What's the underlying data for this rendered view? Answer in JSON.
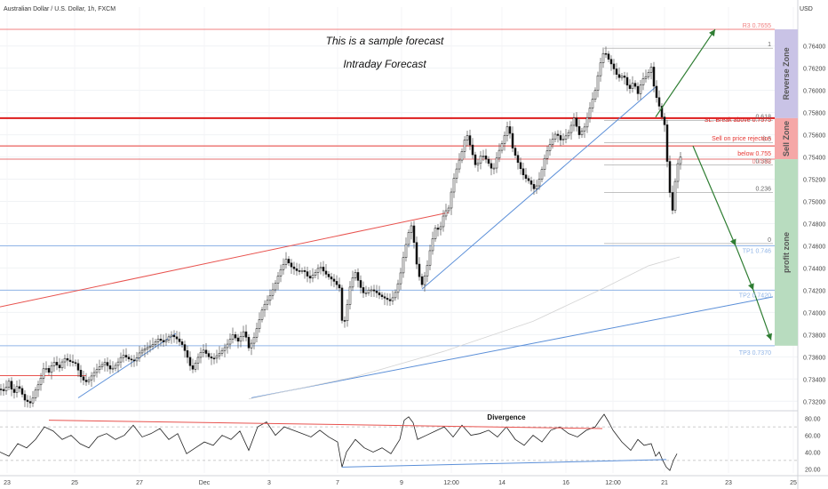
{
  "header": {
    "symbol_title": "Australian Dollar / U.S. Dollar, 1h, FXCM",
    "currency": "USD"
  },
  "annotations": {
    "line1": "This is a sample forecast",
    "line2": "Intraday Forecast"
  },
  "zones": {
    "reverse": "Reverse Zone",
    "sell": "Sell Zone",
    "profit": "profit zone",
    "colors": {
      "reverse": "#c9c3e6",
      "sell": "#f5a7a7",
      "profit": "#b8dcbf"
    }
  },
  "chart_data": {
    "type": "candlestick",
    "ylim": [
      0.7313,
      0.7675
    ],
    "y_ticks": [
      "0.76400",
      "0.76200",
      "0.76000",
      "0.75800",
      "0.75600",
      "0.75400",
      "0.75200",
      "0.75000",
      "0.74800",
      "0.74600",
      "0.74400",
      "0.74200",
      "0.74000",
      "0.73800",
      "0.73600",
      "0.73400",
      "0.73200"
    ],
    "x_ticks": [
      "23",
      "25",
      "27",
      "Dec",
      "3",
      "7",
      "9",
      "12:00",
      "14",
      "16",
      "12:00",
      "21",
      "23",
      "25"
    ],
    "levels": [
      {
        "price": 0.7655,
        "label": "R3  0.7655",
        "color": "#f08080"
      },
      {
        "price": 0.7575,
        "label": "SL: Break above 0.7575",
        "color": "#dd1d1d"
      },
      {
        "price": 0.755,
        "label": "Sell on price rejection",
        "color": "#e53935"
      },
      {
        "price": 0.755,
        "label": "below  0.755",
        "color": "#e53935"
      },
      {
        "price": 0.7538,
        "label": "0.7538",
        "color": "#e57373"
      },
      {
        "price": 0.746,
        "label": "TP1  0.746",
        "color": "#90b4e6"
      },
      {
        "price": 0.742,
        "label": "TP2  0.7420",
        "color": "#90b4e6"
      },
      {
        "price": 0.737,
        "label": "TP3  0.7370",
        "color": "#90b4e6"
      }
    ],
    "fib_levels": [
      {
        "ratio": "1",
        "price": 0.7638
      },
      {
        "ratio": "0.618",
        "price": 0.7573
      },
      {
        "ratio": "0.5",
        "price": 0.7553
      },
      {
        "ratio": "0.382",
        "price": 0.7533
      },
      {
        "ratio": "0.236",
        "price": 0.7508
      },
      {
        "ratio": "0",
        "price": 0.7462
      }
    ],
    "price_path": [
      [
        0,
        0.7331
      ],
      [
        5,
        0.7329
      ],
      [
        10,
        0.7338
      ],
      [
        15,
        0.7326
      ],
      [
        20,
        0.7335
      ],
      [
        28,
        0.7321
      ],
      [
        35,
        0.7318
      ],
      [
        40,
        0.733
      ],
      [
        45,
        0.7338
      ],
      [
        50,
        0.7352
      ],
      [
        55,
        0.7346
      ],
      [
        60,
        0.7356
      ],
      [
        67,
        0.735
      ],
      [
        72,
        0.7359
      ],
      [
        78,
        0.7356
      ],
      [
        85,
        0.7354
      ],
      [
        92,
        0.734
      ],
      [
        98,
        0.7337
      ],
      [
        105,
        0.7345
      ],
      [
        112,
        0.7351
      ],
      [
        118,
        0.7355
      ],
      [
        125,
        0.7348
      ],
      [
        132,
        0.7354
      ],
      [
        138,
        0.7362
      ],
      [
        145,
        0.7358
      ],
      [
        152,
        0.7356
      ],
      [
        158,
        0.7365
      ],
      [
        165,
        0.7368
      ],
      [
        172,
        0.7371
      ],
      [
        178,
        0.7376
      ],
      [
        185,
        0.7373
      ],
      [
        192,
        0.738
      ],
      [
        198,
        0.7377
      ],
      [
        205,
        0.7371
      ],
      [
        210,
        0.7362
      ],
      [
        216,
        0.7347
      ],
      [
        222,
        0.7358
      ],
      [
        228,
        0.7367
      ],
      [
        235,
        0.736
      ],
      [
        240,
        0.7358
      ],
      [
        248,
        0.7364
      ],
      [
        255,
        0.737
      ],
      [
        262,
        0.738
      ],
      [
        268,
        0.7374
      ],
      [
        275,
        0.7384
      ],
      [
        280,
        0.7368
      ],
      [
        285,
        0.7375
      ],
      [
        290,
        0.7388
      ],
      [
        296,
        0.7405
      ],
      [
        302,
        0.7412
      ],
      [
        308,
        0.7422
      ],
      [
        315,
        0.7437
      ],
      [
        322,
        0.7448
      ],
      [
        328,
        0.7441
      ],
      [
        335,
        0.7437
      ],
      [
        342,
        0.7438
      ],
      [
        348,
        0.743
      ],
      [
        355,
        0.7436
      ],
      [
        360,
        0.7442
      ],
      [
        365,
        0.7436
      ],
      [
        370,
        0.7432
      ],
      [
        376,
        0.7428
      ],
      [
        382,
        0.7422
      ],
      [
        386,
        0.7383
      ],
      [
        390,
        0.7402
      ],
      [
        395,
        0.7428
      ],
      [
        400,
        0.7436
      ],
      [
        405,
        0.7424
      ],
      [
        410,
        0.7416
      ],
      [
        416,
        0.7421
      ],
      [
        422,
        0.7419
      ],
      [
        428,
        0.7415
      ],
      [
        435,
        0.7412
      ],
      [
        440,
        0.741
      ],
      [
        445,
        0.7418
      ],
      [
        450,
        0.7431
      ],
      [
        455,
        0.7454
      ],
      [
        460,
        0.7472
      ],
      [
        463,
        0.7478
      ],
      [
        466,
        0.7463
      ],
      [
        470,
        0.7437
      ],
      [
        475,
        0.7425
      ],
      [
        480,
        0.7438
      ],
      [
        485,
        0.746
      ],
      [
        490,
        0.7476
      ],
      [
        495,
        0.7474
      ],
      [
        500,
        0.749
      ],
      [
        505,
        0.7494
      ],
      [
        510,
        0.7518
      ],
      [
        515,
        0.7532
      ],
      [
        520,
        0.7545
      ],
      [
        525,
        0.7562
      ],
      [
        530,
        0.7548
      ],
      [
        536,
        0.753
      ],
      [
        542,
        0.7543
      ],
      [
        548,
        0.7537
      ],
      [
        555,
        0.7527
      ],
      [
        560,
        0.7542
      ],
      [
        566,
        0.7554
      ],
      [
        572,
        0.757
      ],
      [
        577,
        0.7548
      ],
      [
        583,
        0.7535
      ],
      [
        590,
        0.7522
      ],
      [
        596,
        0.7518
      ],
      [
        602,
        0.751
      ],
      [
        608,
        0.7522
      ],
      [
        614,
        0.7542
      ],
      [
        620,
        0.7553
      ],
      [
        626,
        0.7562
      ],
      [
        632,
        0.7554
      ],
      [
        640,
        0.7562
      ],
      [
        646,
        0.7575
      ],
      [
        652,
        0.756
      ],
      [
        658,
        0.7567
      ],
      [
        664,
        0.7584
      ],
      [
        670,
        0.76
      ],
      [
        675,
        0.7622
      ],
      [
        680,
        0.7636
      ],
      [
        685,
        0.7628
      ],
      [
        690,
        0.7621
      ],
      [
        696,
        0.7611
      ],
      [
        702,
        0.7614
      ],
      [
        708,
        0.76
      ],
      [
        713,
        0.7608
      ],
      [
        718,
        0.7597
      ],
      [
        723,
        0.761
      ],
      [
        728,
        0.7613
      ],
      [
        733,
        0.7621
      ],
      [
        737,
        0.7598
      ],
      [
        741,
        0.7589
      ],
      [
        745,
        0.7576
      ],
      [
        748,
        0.7569
      ],
      [
        751,
        0.7536
      ],
      [
        754,
        0.7508
      ],
      [
        757,
        0.7492
      ],
      [
        760,
        0.7518
      ],
      [
        763,
        0.7534
      ],
      [
        766,
        0.754
      ]
    ],
    "trendlines": [
      {
        "name": "red-trendline",
        "p1": [
          0,
          0.7405
        ],
        "p2": [
          505,
          0.749
        ],
        "color": "#e8534f"
      },
      {
        "name": "red-short-line",
        "p1": [
          0,
          0.7343
        ],
        "p2": [
          97,
          0.7343
        ],
        "color": "#e8534f"
      },
      {
        "name": "blue-support-1",
        "p1": [
          88,
          0.7323
        ],
        "p2": [
          198,
          0.7381
        ],
        "color": "#5b8fd8"
      },
      {
        "name": "blue-support-2",
        "p1": [
          475,
          0.7421
        ],
        "p2": [
          738,
          0.7603
        ],
        "color": "#5b8fd8"
      },
      {
        "name": "blue-long-support",
        "p1": [
          283,
          0.7323
        ],
        "p2": [
          870,
          0.7414
        ],
        "color": "#5b8fd8"
      }
    ],
    "forecast_path": [
      [
        738,
        0.7576
      ],
      [
        805,
        0.7655
      ],
      [
        738,
        0.7576
      ]
    ],
    "forecast_arrows": [
      {
        "from": [
          780,
          0.755
        ],
        "to": [
          828,
          0.746
        ]
      },
      {
        "from": [
          828,
          0.746
        ],
        "to": [
          848,
          0.742
        ]
      },
      {
        "from": [
          848,
          0.742
        ],
        "to": [
          868,
          0.7375
        ]
      }
    ],
    "oscillator": {
      "ylim": [
        15,
        85
      ],
      "ticks": [
        "80.00",
        "60.00",
        "40.00",
        "20.00"
      ],
      "label": "Divergence",
      "values": [
        [
          0,
          40
        ],
        [
          10,
          35
        ],
        [
          20,
          50
        ],
        [
          30,
          45
        ],
        [
          40,
          55
        ],
        [
          50,
          70
        ],
        [
          60,
          65
        ],
        [
          70,
          55
        ],
        [
          80,
          60
        ],
        [
          90,
          50
        ],
        [
          100,
          45
        ],
        [
          110,
          58
        ],
        [
          120,
          62
        ],
        [
          130,
          55
        ],
        [
          140,
          60
        ],
        [
          150,
          72
        ],
        [
          160,
          58
        ],
        [
          170,
          62
        ],
        [
          180,
          68
        ],
        [
          190,
          55
        ],
        [
          200,
          62
        ],
        [
          210,
          38
        ],
        [
          220,
          45
        ],
        [
          230,
          52
        ],
        [
          240,
          48
        ],
        [
          250,
          60
        ],
        [
          260,
          55
        ],
        [
          270,
          65
        ],
        [
          280,
          42
        ],
        [
          290,
          70
        ],
        [
          300,
          76
        ],
        [
          310,
          60
        ],
        [
          320,
          70
        ],
        [
          330,
          66
        ],
        [
          340,
          62
        ],
        [
          350,
          58
        ],
        [
          360,
          66
        ],
        [
          370,
          58
        ],
        [
          380,
          52
        ],
        [
          385,
          22
        ],
        [
          390,
          40
        ],
        [
          400,
          55
        ],
        [
          410,
          45
        ],
        [
          420,
          40
        ],
        [
          430,
          45
        ],
        [
          440,
          38
        ],
        [
          450,
          55
        ],
        [
          455,
          78
        ],
        [
          460,
          82
        ],
        [
          465,
          75
        ],
        [
          470,
          55
        ],
        [
          480,
          60
        ],
        [
          490,
          65
        ],
        [
          500,
          70
        ],
        [
          510,
          58
        ],
        [
          520,
          72
        ],
        [
          530,
          60
        ],
        [
          540,
          62
        ],
        [
          550,
          66
        ],
        [
          560,
          58
        ],
        [
          570,
          70
        ],
        [
          580,
          55
        ],
        [
          590,
          48
        ],
        [
          600,
          60
        ],
        [
          610,
          52
        ],
        [
          620,
          66
        ],
        [
          630,
          70
        ],
        [
          640,
          62
        ],
        [
          650,
          58
        ],
        [
          660,
          66
        ],
        [
          670,
          70
        ],
        [
          675,
          78
        ],
        [
          680,
          85
        ],
        [
          685,
          76
        ],
        [
          690,
          66
        ],
        [
          700,
          52
        ],
        [
          710,
          42
        ],
        [
          718,
          55
        ],
        [
          725,
          48
        ],
        [
          733,
          50
        ],
        [
          738,
          35
        ],
        [
          742,
          40
        ],
        [
          746,
          30
        ],
        [
          750,
          22
        ],
        [
          754,
          18
        ],
        [
          758,
          30
        ],
        [
          762,
          38
        ]
      ],
      "divergence_lines": [
        {
          "p1": [
            55,
            78
          ],
          "p2": [
            678,
            68
          ],
          "color": "#e8534f"
        },
        {
          "p1": [
            385,
            22
          ],
          "p2": [
            750,
            31
          ],
          "color": "#5b8fd8"
        }
      ]
    }
  }
}
